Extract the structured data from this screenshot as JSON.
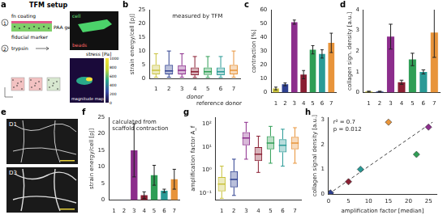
{
  "panels": {
    "a": {
      "label": "a",
      "title": "TFM setup",
      "texts": [
        "fn coating",
        "PAA gel",
        "fiducial marker",
        "trypsin"
      ],
      "steps": [
        "1",
        "2"
      ],
      "image_labels": [
        "cell",
        "beads"
      ],
      "map_label": "magnitude map",
      "colorbar": {
        "label": "stress [Pa]",
        "range": [
          0,
          1000
        ],
        "ticks": [
          0,
          200,
          400,
          600,
          800,
          1000
        ]
      }
    },
    "e": {
      "label": "e",
      "images": [
        "D1",
        "D3"
      ]
    }
  },
  "chart_data": [
    {
      "panel": "b",
      "type": "box",
      "x_label": "donor",
      "y_label": "strain energy/cell [pJ]",
      "categories": [
        "1",
        "2",
        "3",
        "4",
        "5",
        "6",
        "7"
      ],
      "min": [
        0.5,
        0.5,
        0.5,
        0.4,
        0.4,
        0.4,
        0.5
      ],
      "q1": [
        1.5,
        1.5,
        1.5,
        1.2,
        1.3,
        1.2,
        1.5
      ],
      "values": [
        3,
        2.8,
        3,
        2.5,
        2.5,
        2.5,
        3
      ],
      "q3": [
        5,
        5,
        4.8,
        4,
        4,
        4,
        5
      ],
      "max": [
        9,
        10,
        9,
        8,
        8,
        8,
        10
      ],
      "colors": [
        "#c9c23c",
        "#2d3f8f",
        "#8c2d8c",
        "#8a1f33",
        "#2f9e55",
        "#2a9a96",
        "#e8943a"
      ],
      "ylim": [
        0,
        25
      ],
      "yticks": [
        0,
        5,
        10,
        15,
        20,
        25
      ],
      "grid": false,
      "annotations": [
        "measured by TFM",
        "reference donor"
      ]
    },
    {
      "panel": "c",
      "type": "bar",
      "y_label": "contraction [%]",
      "categories": [
        "1",
        "2",
        "3",
        "4",
        "5",
        "6",
        "7"
      ],
      "values": [
        3,
        6,
        51,
        13,
        31,
        28,
        36
      ],
      "errors": [
        1,
        1,
        1.5,
        3,
        3,
        3,
        7
      ],
      "colors": [
        "#c9c23c",
        "#2d3f8f",
        "#8c2d8c",
        "#8a1f33",
        "#2f9e55",
        "#2a9a96",
        "#e8943a"
      ],
      "ylim": [
        0,
        60
      ],
      "yticks": [
        0,
        10,
        20,
        30,
        40,
        50,
        60
      ],
      "grid": false
    },
    {
      "panel": "d",
      "type": "bar",
      "y_label": "collagen sign. density [a.u.]",
      "categories": [
        "1",
        "2",
        "3",
        "4",
        "5",
        "6",
        "7"
      ],
      "values": [
        0.05,
        0.05,
        2.7,
        0.5,
        1.6,
        1.0,
        2.9
      ],
      "errors": [
        0.02,
        0.02,
        0.6,
        0.1,
        0.3,
        0.1,
        1.2
      ],
      "colors": [
        "#c9c23c",
        "#2d3f8f",
        "#8c2d8c",
        "#8a1f33",
        "#2f9e55",
        "#2a9a96",
        "#e8943a"
      ],
      "ylim": [
        0,
        4
      ],
      "yticks": [
        0,
        1,
        2,
        3,
        4
      ],
      "grid": false
    },
    {
      "panel": "f",
      "type": "bar",
      "y_label": "strain energy/cell [pJ]",
      "categories": [
        "1",
        "2",
        "3",
        "4",
        "5",
        "6",
        "7"
      ],
      "values": [
        0.05,
        0.1,
        15,
        1.5,
        7.5,
        2.8,
        6.3
      ],
      "errors": [
        0,
        0,
        8,
        1,
        3,
        0.5,
        3
      ],
      "colors": [
        "#c9c23c",
        "#2d3f8f",
        "#8c2d8c",
        "#8a1f33",
        "#2f9e55",
        "#2a9a96",
        "#e8943a"
      ],
      "ylim": [
        0,
        25
      ],
      "yticks": [
        0,
        5,
        10,
        15,
        20,
        25
      ],
      "grid": false,
      "annotations": [
        "calculated from scaffold contraction"
      ]
    },
    {
      "panel": "g",
      "type": "box",
      "y_label": "amplification factor A_f",
      "log": "y",
      "categories": [
        "1",
        "2",
        "3",
        "4",
        "5",
        "6",
        "7"
      ],
      "min": [
        0.06,
        0.08,
        3,
        0.8,
        2,
        1.5,
        2
      ],
      "q1": [
        0.12,
        0.18,
        12,
        2.5,
        8,
        6,
        8
      ],
      "values": [
        0.25,
        0.4,
        25,
        5,
        15,
        12,
        15
      ],
      "q3": [
        0.5,
        0.9,
        45,
        10,
        30,
        22,
        28
      ],
      "max": [
        1.5,
        3,
        120,
        30,
        80,
        60,
        70
      ],
      "colors": [
        "#c9c23c",
        "#2d3f8f",
        "#8c2d8c",
        "#8a1f33",
        "#2f9e55",
        "#2a9a96",
        "#e8943a"
      ],
      "ylim": [
        0.05,
        200
      ],
      "yticks": [
        {
          "value": 0.1,
          "label": "10⁻¹"
        },
        {
          "value": 1,
          "label": "10⁰"
        },
        {
          "value": 10,
          "label": "10¹"
        },
        {
          "value": 100,
          "label": "10²"
        }
      ],
      "grid": false
    },
    {
      "panel": "h",
      "type": "scatter",
      "x_label": "amplification factor [median]",
      "y_label": "collagen signal density [a.u.]",
      "series": [
        {
          "type": "scatter",
          "marker": "diamond",
          "x": [
            0.3,
            0.5,
            25,
            5,
            22,
            8,
            15
          ],
          "values": [
            0.03,
            0.05,
            2.7,
            0.5,
            1.6,
            1.0,
            2.9
          ],
          "colors": [
            "#c9c23c",
            "#2d3f8f",
            "#8c2d8c",
            "#8a1f33",
            "#2f9e55",
            "#2a9a96",
            "#e8943a"
          ]
        },
        {
          "type": "line",
          "line_style": "dashed",
          "color": "#444444",
          "x": [
            0,
            26
          ],
          "values": [
            0,
            2.9
          ]
        }
      ],
      "xlim": [
        0,
        27
      ],
      "xticks": [
        0,
        5,
        10,
        15,
        20,
        25
      ],
      "ylim": [
        0,
        3.1
      ],
      "yticks": [
        0,
        1,
        2,
        3
      ],
      "grid": false,
      "annotations": [
        "r² = 0.7",
        "p = 0.012"
      ]
    }
  ]
}
